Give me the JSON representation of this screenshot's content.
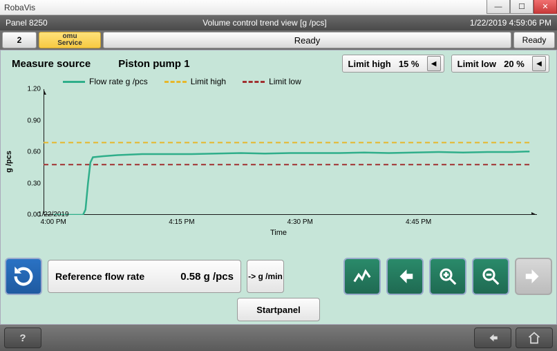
{
  "window": {
    "title": "RobaVis"
  },
  "header": {
    "panel": "Panel 8250",
    "title": "Volume control trend view [g /pcs]",
    "timestamp": "1/22/2019 4:59:06 PM"
  },
  "tabs": {
    "num": "2",
    "omu_line1": "omu",
    "omu_line2": "Service",
    "ready_main": "Ready",
    "ready_side": "Ready"
  },
  "controls": {
    "measure_source_label": "Measure source",
    "pump_label": "Piston pump 1",
    "limit_high_label": "Limit high",
    "limit_high_value": "15  %",
    "limit_low_label": "Limit low",
    "limit_low_value": "20  %"
  },
  "legend": {
    "flow": "Flow rate g /pcs",
    "high": "Limit high",
    "low": "Limit low"
  },
  "chart": {
    "type": "line",
    "ylabel": "g /pcs",
    "xlabel": "Time",
    "ylim": [
      0.0,
      1.2
    ],
    "yticks": [
      0.0,
      0.3,
      0.6,
      0.9,
      1.2
    ],
    "ytick_labels": [
      "0.00",
      "0.30",
      "0.60",
      "0.90",
      "1.20"
    ],
    "xtick_positions": [
      0.02,
      0.28,
      0.52,
      0.76
    ],
    "xtick_labels": [
      "1/22/2019\n4:00 PM",
      "4:15 PM",
      "4:30 PM",
      "4:45 PM"
    ],
    "limit_high_y": 0.69,
    "limit_low_y": 0.48,
    "flow_color": "#2fae8a",
    "limit_high_color": "#e7b72a",
    "limit_low_color": "#a03030",
    "axis_color": "#1a1a1a",
    "background_color": "#c6e5d8",
    "flow_points": [
      [
        0.02,
        0.0
      ],
      [
        0.06,
        0.0
      ],
      [
        0.08,
        0.0
      ],
      [
        0.085,
        0.05
      ],
      [
        0.09,
        0.3
      ],
      [
        0.095,
        0.5
      ],
      [
        0.1,
        0.55
      ],
      [
        0.12,
        0.56
      ],
      [
        0.15,
        0.57
      ],
      [
        0.2,
        0.58
      ],
      [
        0.25,
        0.58
      ],
      [
        0.3,
        0.58
      ],
      [
        0.35,
        0.585
      ],
      [
        0.4,
        0.59
      ],
      [
        0.45,
        0.585
      ],
      [
        0.5,
        0.59
      ],
      [
        0.55,
        0.59
      ],
      [
        0.6,
        0.59
      ],
      [
        0.65,
        0.595
      ],
      [
        0.7,
        0.59
      ],
      [
        0.75,
        0.595
      ],
      [
        0.8,
        0.6
      ],
      [
        0.85,
        0.595
      ],
      [
        0.9,
        0.6
      ],
      [
        0.95,
        0.6
      ],
      [
        0.985,
        0.605
      ]
    ]
  },
  "bottom": {
    "ref_label": "Reference flow rate",
    "ref_value": "0.58  g /pcs",
    "unit_toggle": "-> g /min"
  },
  "startpanel": "Startpanel"
}
